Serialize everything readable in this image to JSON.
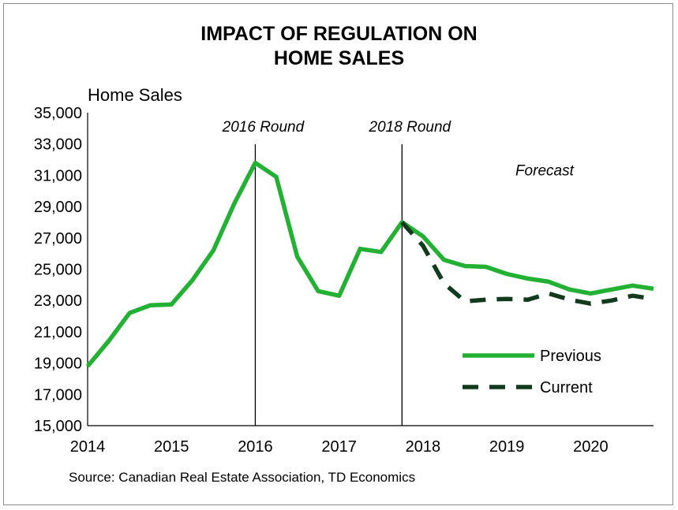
{
  "chart_data": {
    "type": "line",
    "title_line1": "IMPACT OF REGULATION ON",
    "title_line2": "HOME SALES",
    "ylabel": "Home Sales",
    "source": "Source: Canadian Real Estate Association, TD Economics",
    "ylim": [
      15000,
      35000
    ],
    "xlim": [
      2014.0,
      2020.75
    ],
    "y_ticks": [
      "15,000",
      "17,000",
      "19,000",
      "21,000",
      "23,000",
      "25,000",
      "27,000",
      "29,000",
      "31,000",
      "33,000",
      "35,000"
    ],
    "x_ticks": [
      {
        "label": "2014",
        "pos": 2014.0
      },
      {
        "label": "2015",
        "pos": 2015.0
      },
      {
        "label": "2016",
        "pos": 2016.0
      },
      {
        "label": "2017",
        "pos": 2017.0
      },
      {
        "label": "2018",
        "pos": 2018.0
      },
      {
        "label": "2019",
        "pos": 2019.0
      },
      {
        "label": "2020",
        "pos": 2020.0
      }
    ],
    "grid": false,
    "legend_position": "bottom-right",
    "series": [
      {
        "name": "Previous",
        "color": "#22b133",
        "style": "solid",
        "points": [
          [
            2014.0,
            18800
          ],
          [
            2014.25,
            20400
          ],
          [
            2014.5,
            22200
          ],
          [
            2014.75,
            22700
          ],
          [
            2015.0,
            22750
          ],
          [
            2015.25,
            24300
          ],
          [
            2015.5,
            26200
          ],
          [
            2015.75,
            29200
          ],
          [
            2016.0,
            31800
          ],
          [
            2016.25,
            30900
          ],
          [
            2016.5,
            25800
          ],
          [
            2016.75,
            23600
          ],
          [
            2017.0,
            23300
          ],
          [
            2017.25,
            26300
          ],
          [
            2017.5,
            26100
          ],
          [
            2017.75,
            28000
          ],
          [
            2018.0,
            27100
          ],
          [
            2018.25,
            25600
          ],
          [
            2018.5,
            25200
          ],
          [
            2018.75,
            25150
          ],
          [
            2019.0,
            24700
          ],
          [
            2019.25,
            24400
          ],
          [
            2019.5,
            24200
          ],
          [
            2019.75,
            23700
          ],
          [
            2020.0,
            23450
          ],
          [
            2020.25,
            23700
          ],
          [
            2020.5,
            23950
          ],
          [
            2020.75,
            23750
          ]
        ]
      },
      {
        "name": "Current",
        "color": "#123a1c",
        "style": "dashed",
        "points": [
          [
            2017.75,
            28000
          ],
          [
            2018.0,
            26500
          ],
          [
            2018.25,
            24100
          ],
          [
            2018.5,
            22950
          ],
          [
            2018.75,
            23050
          ],
          [
            2019.0,
            23100
          ],
          [
            2019.25,
            23050
          ],
          [
            2019.5,
            23450
          ],
          [
            2019.75,
            23050
          ],
          [
            2020.0,
            22800
          ],
          [
            2020.25,
            23000
          ],
          [
            2020.5,
            23300
          ],
          [
            2020.75,
            23100
          ]
        ]
      }
    ],
    "annotations": [
      {
        "text": "2016 Round",
        "x": 2016.0,
        "line": true
      },
      {
        "text": "2018 Round",
        "x": 2017.75,
        "line": true
      },
      {
        "text": "Forecast",
        "x": 2019.45,
        "y": 31000,
        "line": false
      }
    ]
  }
}
